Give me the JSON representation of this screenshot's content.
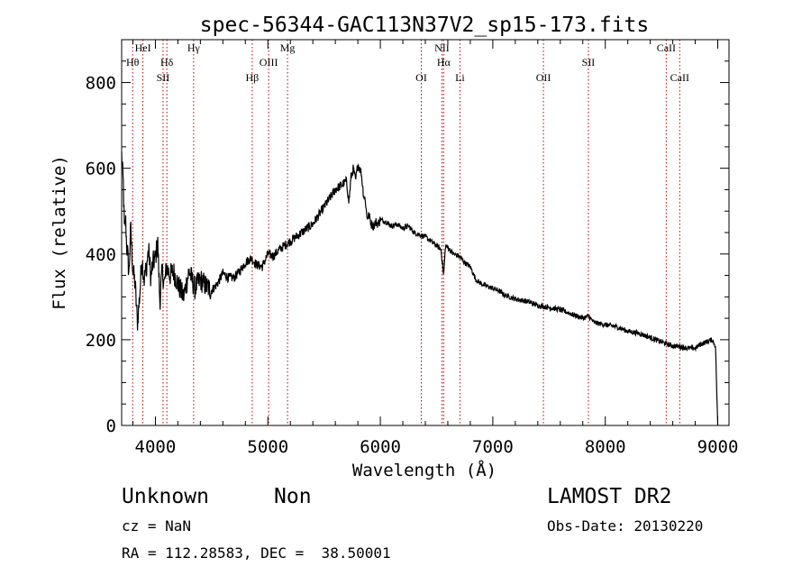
{
  "chart_data": {
    "type": "line",
    "title": "spec-56344-GAC113N37V2_sp15-173.fits",
    "xlabel": "Wavelength (Å)",
    "ylabel": "Flux (relative)",
    "xlim": [
      3700,
      9100
    ],
    "ylim": [
      0,
      900
    ],
    "x_ticks": [
      4000,
      5000,
      6000,
      7000,
      8000,
      9000
    ],
    "x_tick_labels": [
      "4000",
      "5000",
      "6000",
      "7000",
      "8000",
      "9000"
    ],
    "y_ticks": [
      0,
      200,
      400,
      600,
      800
    ],
    "y_tick_labels": [
      "0",
      "200",
      "400",
      "600",
      "800"
    ],
    "grid": false,
    "series": [
      {
        "x": [
          3700,
          3715,
          3725,
          3735,
          3745,
          3755,
          3765,
          3780,
          3800,
          3820,
          3840,
          3860,
          3880,
          3900,
          3920,
          3940,
          3960,
          3980,
          4000,
          4020,
          4040,
          4060,
          4080,
          4100,
          4130,
          4160,
          4200,
          4250,
          4300,
          4350,
          4400,
          4450,
          4500,
          4550,
          4600,
          4650,
          4700,
          4750,
          4800,
          4850,
          4900,
          4950,
          5000,
          5050,
          5100,
          5150,
          5200,
          5250,
          5300,
          5350,
          5400,
          5450,
          5500,
          5550,
          5600,
          5650,
          5700,
          5720,
          5740,
          5760,
          5780,
          5800,
          5830,
          5850,
          5870,
          5880,
          5900,
          5920,
          5940,
          5960,
          5980,
          6000,
          6050,
          6100,
          6150,
          6200,
          6250,
          6300,
          6350,
          6400,
          6450,
          6500,
          6540,
          6563,
          6580,
          6600,
          6650,
          6700,
          6750,
          6800,
          6850,
          6900,
          6950,
          7000,
          7050,
          7100,
          7150,
          7200,
          7300,
          7400,
          7500,
          7600,
          7700,
          7800,
          7850,
          7900,
          8000,
          8100,
          8200,
          8300,
          8400,
          8450,
          8500,
          8550,
          8600,
          8650,
          8700,
          8750,
          8800,
          8850,
          8900,
          8950,
          8980,
          9000
        ],
        "y": [
          630,
          560,
          450,
          480,
          420,
          395,
          350,
          460,
          360,
          330,
          240,
          300,
          390,
          340,
          370,
          410,
          345,
          380,
          390,
          430,
          290,
          360,
          330,
          370,
          350,
          360,
          330,
          300,
          360,
          320,
          340,
          325,
          315,
          330,
          355,
          345,
          345,
          360,
          380,
          390,
          375,
          370,
          400,
          395,
          410,
          420,
          430,
          440,
          450,
          460,
          470,
          490,
          510,
          530,
          550,
          560,
          570,
          520,
          580,
          600,
          570,
          610,
          590,
          540,
          520,
          485,
          490,
          470,
          465,
          475,
          470,
          480,
          475,
          465,
          470,
          460,
          465,
          450,
          445,
          440,
          430,
          420,
          410,
          350,
          420,
          415,
          400,
          395,
          380,
          370,
          340,
          330,
          325,
          320,
          315,
          305,
          300,
          295,
          290,
          280,
          275,
          270,
          260,
          250,
          255,
          240,
          235,
          230,
          220,
          215,
          205,
          200,
          195,
          190,
          185,
          185,
          182,
          180,
          180,
          190,
          195,
          200,
          185,
          0
        ]
      }
    ],
    "line_labels": [
      {
        "name": "Hθ",
        "x": 3798
      },
      {
        "name": "HeI",
        "x": 3889
      },
      {
        "name": "SII",
        "x": 4068
      },
      {
        "name": "Hδ",
        "x": 4102
      },
      {
        "name": "Hγ",
        "x": 4340
      },
      {
        "name": "Hβ",
        "x": 4861
      },
      {
        "name": "OIII",
        "x": 5007
      },
      {
        "name": "Mg",
        "x": 5175
      },
      {
        "name": "OI",
        "x": 6364
      },
      {
        "name": "NII",
        "x": 6548
      },
      {
        "name": "Hα",
        "x": 6563
      },
      {
        "name": "Li",
        "x": 6708
      },
      {
        "name": "OII",
        "x": 7450
      },
      {
        "name": "SII",
        "x": 7850
      },
      {
        "name": "CaII",
        "x": 8542
      },
      {
        "name": "CaII",
        "x": 8662
      }
    ]
  },
  "info": {
    "object_class": "Unknown",
    "object_subclass": "Non",
    "survey": "LAMOST DR2",
    "redshift": "cz = NaN",
    "obs_date": "Obs-Date: 20130220",
    "coordinates": "RA = 112.28583, DEC =  38.50001"
  }
}
